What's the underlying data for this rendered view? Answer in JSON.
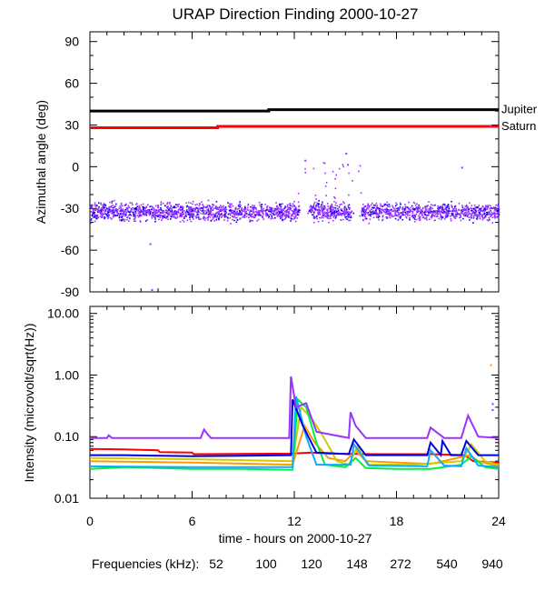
{
  "title": "URAP Direction Finding  2000-10-27",
  "chart_data": [
    {
      "type": "scatter",
      "ylabel": "Azimuthal angle (deg)",
      "xlim": [
        0,
        24
      ],
      "ylim": [
        -90,
        97
      ],
      "x_ticks": [
        "0",
        "6",
        "12",
        "18",
        "24"
      ],
      "y_ticks": [
        90,
        60,
        30,
        0,
        -30,
        -60,
        -90
      ],
      "reference_lines": [
        {
          "name": "Jupiter",
          "color": "#000000",
          "x": [
            0,
            10.5,
            10.5,
            24
          ],
          "y": [
            40,
            40,
            41,
            41
          ]
        },
        {
          "name": "Saturn",
          "color": "#ff0000",
          "x": [
            0,
            7.5,
            7.5,
            24
          ],
          "y": [
            28,
            28,
            29,
            29
          ]
        }
      ],
      "scatter_band": {
        "color_primary": "#9933ff",
        "color_secondary": "#0000ee",
        "center": -32,
        "spread": 9,
        "gaps": [
          [
            12.3,
            12.8
          ],
          [
            15.3,
            15.9
          ]
        ],
        "outliers": [
          [
            3.5,
            -55
          ],
          [
            3.6,
            -88
          ],
          [
            12.6,
            5
          ],
          [
            15.0,
            10
          ],
          [
            15.1,
            2
          ],
          [
            21.8,
            0
          ],
          [
            23.5,
            30
          ]
        ]
      }
    },
    {
      "type": "line",
      "xlabel": "time - hours on 2000-10-27",
      "ylabel": "Intensity (microvolt/sqrt(Hz))",
      "yscale": "log",
      "xlim": [
        0,
        24
      ],
      "ylim": [
        0.01,
        13
      ],
      "x_ticks": [
        "0",
        "6",
        "12",
        "18",
        "24"
      ],
      "y_ticks": [
        "10.00",
        "1.00",
        "0.10",
        "0.01"
      ],
      "legend_label": "Frequencies (kHz):",
      "series": [
        {
          "name": "52",
          "color": "#ff0000",
          "x": [
            0,
            2,
            4,
            4.1,
            6,
            6.1,
            11.8,
            13,
            14,
            17,
            20,
            22,
            22.5,
            24
          ],
          "y": [
            0.063,
            0.062,
            0.06,
            0.056,
            0.055,
            0.052,
            0.053,
            0.055,
            0.053,
            0.052,
            0.052,
            0.05,
            0.04,
            0.038
          ]
        },
        {
          "name": "100",
          "color": "#ff9900",
          "x": [
            0,
            6,
            11.9,
            12.6,
            13.2,
            14,
            15,
            15.6,
            16.2,
            20,
            22.3,
            22.8,
            24
          ],
          "y": [
            0.04,
            0.038,
            0.035,
            0.15,
            0.08,
            0.045,
            0.04,
            0.06,
            0.04,
            0.036,
            0.05,
            0.04,
            0.033
          ]
        },
        {
          "name": "120",
          "color": "#cccc00",
          "x": [
            0,
            6,
            11.9,
            12.4,
            13,
            13.7,
            14.5,
            15.2,
            15.7,
            16.3,
            19,
            21.8,
            22.4,
            23.2,
            24
          ],
          "y": [
            0.045,
            0.043,
            0.04,
            0.3,
            0.2,
            0.1,
            0.04,
            0.035,
            0.07,
            0.035,
            0.035,
            0.04,
            0.075,
            0.04,
            0.035
          ]
        },
        {
          "name": "148",
          "color": "#00ee44",
          "x": [
            0,
            2,
            6,
            9,
            11.9,
            12.2,
            12.7,
            13.3,
            13.8,
            15,
            15.6,
            16.2,
            18,
            20,
            21.8,
            22.4,
            23.2,
            24
          ],
          "y": [
            0.03,
            0.032,
            0.03,
            0.03,
            0.029,
            0.4,
            0.3,
            0.08,
            0.035,
            0.032,
            0.045,
            0.031,
            0.03,
            0.03,
            0.035,
            0.048,
            0.032,
            0.03
          ]
        },
        {
          "name": "272",
          "color": "#11aaff",
          "x": [
            0,
            6,
            11.9,
            12.1,
            12.7,
            13.3,
            15.3,
            15.5,
            16.4,
            19.8,
            20.0,
            20.8,
            21.8,
            22.1,
            22.8,
            24
          ],
          "y": [
            0.033,
            0.032,
            0.032,
            0.45,
            0.1,
            0.035,
            0.035,
            0.075,
            0.034,
            0.033,
            0.06,
            0.034,
            0.033,
            0.065,
            0.034,
            0.032
          ]
        },
        {
          "name": "540",
          "color": "#0000dd",
          "x": [
            0,
            2,
            6,
            11.8,
            11.9,
            12.5,
            13.3,
            15.2,
            15.5,
            16.2,
            19.8,
            20.0,
            20.6,
            20.7,
            21.2,
            21.8,
            22.1,
            22.8,
            24
          ],
          "y": [
            0.05,
            0.05,
            0.048,
            0.05,
            0.4,
            0.15,
            0.055,
            0.052,
            0.09,
            0.05,
            0.05,
            0.08,
            0.05,
            0.085,
            0.05,
            0.05,
            0.085,
            0.05,
            0.05
          ]
        },
        {
          "name": "940",
          "color": "#9933ff",
          "x": [
            0,
            1,
            1.1,
            1.3,
            6.5,
            6.7,
            6.9,
            7.1,
            11.7,
            11.8,
            12.1,
            12.7,
            13.3,
            15.2,
            15.3,
            15.6,
            16.2,
            19.8,
            20.0,
            20.8,
            21.8,
            22.2,
            22.8,
            24
          ],
          "y": [
            0.095,
            0.095,
            0.105,
            0.095,
            0.095,
            0.13,
            0.11,
            0.095,
            0.095,
            0.95,
            0.3,
            0.35,
            0.12,
            0.095,
            0.25,
            0.15,
            0.095,
            0.095,
            0.14,
            0.095,
            0.095,
            0.22,
            0.1,
            0.095
          ]
        }
      ]
    }
  ]
}
